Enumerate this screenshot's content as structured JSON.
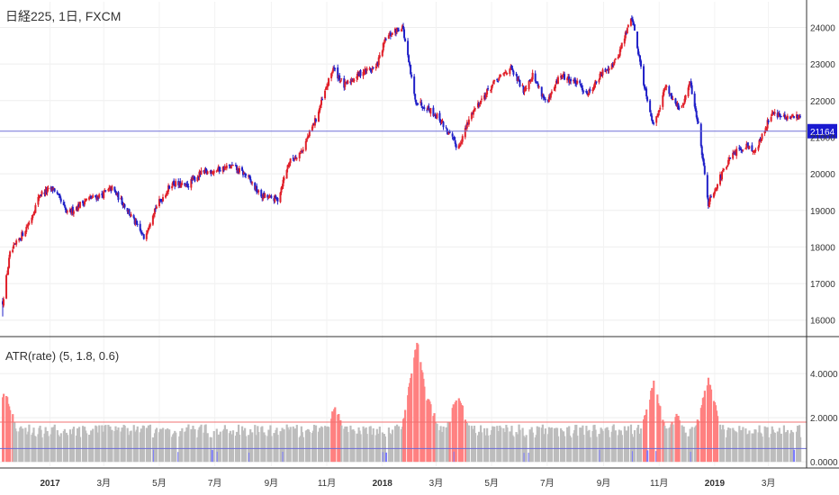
{
  "colors": {
    "up": "#e0202a",
    "down": "#2020c8",
    "ref_line": "#7070d8",
    "hist_normal": "#bdbdbd",
    "hist_high": "#ff8080",
    "hist_low": "#7b7bff",
    "upper_line": "#f07070",
    "lower_line": "#6a6ad8",
    "price_badge": "#1a1ad0"
  },
  "chart_data": [
    {
      "type": "candlestick",
      "title": "日経225, 1日, FXCM",
      "ylim": [
        15600,
        24700
      ],
      "y_ticks": [
        16000,
        17000,
        18000,
        19000,
        20000,
        21000,
        22000,
        23000,
        24000
      ],
      "y_tick_labels": [
        "16000",
        "17000",
        "18000",
        "19000",
        "20000",
        "21000",
        "22000",
        "23000",
        "24000"
      ],
      "current_price": 21164,
      "current_price_label": "21164",
      "x_date_range": [
        "2016-11-10",
        "2019-04-05"
      ],
      "path_anchors": [
        [
          "2016-11-10",
          16500
        ],
        [
          "2016-11-18",
          17800
        ],
        [
          "2016-12-10",
          18700
        ],
        [
          "2016-12-21",
          19450
        ],
        [
          "2017-01-05",
          19600
        ],
        [
          "2017-01-20",
          18900
        ],
        [
          "2017-02-10",
          19300
        ],
        [
          "2017-02-25",
          19400
        ],
        [
          "2017-03-10",
          19600
        ],
        [
          "2017-03-25",
          19100
        ],
        [
          "2017-04-14",
          18250
        ],
        [
          "2017-04-25",
          19000
        ],
        [
          "2017-05-15",
          19750
        ],
        [
          "2017-05-30",
          19650
        ],
        [
          "2017-06-15",
          20000
        ],
        [
          "2017-07-01",
          20100
        ],
        [
          "2017-07-20",
          20200
        ],
        [
          "2017-08-05",
          19950
        ],
        [
          "2017-08-20",
          19400
        ],
        [
          "2017-09-08",
          19300
        ],
        [
          "2017-09-20",
          20300
        ],
        [
          "2017-10-05",
          20650
        ],
        [
          "2017-10-20",
          21500
        ],
        [
          "2017-11-08",
          22900
        ],
        [
          "2017-11-20",
          22400
        ],
        [
          "2017-12-10",
          22800
        ],
        [
          "2017-12-25",
          22900
        ],
        [
          "2018-01-05",
          23700
        ],
        [
          "2018-01-23",
          24050
        ],
        [
          "2018-02-06",
          22000
        ],
        [
          "2018-02-20",
          21800
        ],
        [
          "2018-03-05",
          21500
        ],
        [
          "2018-03-25",
          20700
        ],
        [
          "2018-04-10",
          21700
        ],
        [
          "2018-05-01",
          22400
        ],
        [
          "2018-05-21",
          22900
        ],
        [
          "2018-06-05",
          22300
        ],
        [
          "2018-06-15",
          22700
        ],
        [
          "2018-07-01",
          21900
        ],
        [
          "2018-07-15",
          22700
        ],
        [
          "2018-08-01",
          22500
        ],
        [
          "2018-08-15",
          22200
        ],
        [
          "2018-09-01",
          22800
        ],
        [
          "2018-09-15",
          23100
        ],
        [
          "2018-10-02",
          24300
        ],
        [
          "2018-10-15",
          22500
        ],
        [
          "2018-10-26",
          21300
        ],
        [
          "2018-11-08",
          22400
        ],
        [
          "2018-11-25",
          21700
        ],
        [
          "2018-12-05",
          22500
        ],
        [
          "2018-12-15",
          21200
        ],
        [
          "2018-12-25",
          19200
        ],
        [
          "2019-01-05",
          19800
        ],
        [
          "2019-01-20",
          20500
        ],
        [
          "2019-02-05",
          20800
        ],
        [
          "2019-02-15",
          20600
        ],
        [
          "2019-03-05",
          21700
        ],
        [
          "2019-03-20",
          21500
        ],
        [
          "2019-04-05",
          21600
        ]
      ]
    },
    {
      "type": "histogram",
      "title": "ATR(rate) (5, 1.8, 0.6)",
      "ylim": [
        -0.2,
        5.6
      ],
      "y_ticks": [
        0,
        2,
        4
      ],
      "y_tick_labels": [
        "0.0000",
        "2.0000",
        "4.0000"
      ],
      "upper_line": 1.8,
      "lower_line": 0.6,
      "peaks": [
        [
          "2016-11-12",
          3.2
        ],
        [
          "2018-02-08",
          5.3
        ],
        [
          "2018-02-20",
          2.8
        ],
        [
          "2018-03-25",
          3.0
        ],
        [
          "2018-10-26",
          3.4
        ],
        [
          "2018-12-25",
          3.6
        ],
        [
          "2017-11-10",
          2.3
        ],
        [
          "2018-11-20",
          2.0
        ]
      ]
    }
  ],
  "x_axis": {
    "ticks": [
      {
        "date": "2017-01-01",
        "label": "2017",
        "bold": true
      },
      {
        "date": "2017-03-01",
        "label": "3月",
        "bold": false
      },
      {
        "date": "2017-05-01",
        "label": "5月",
        "bold": false
      },
      {
        "date": "2017-07-01",
        "label": "7月",
        "bold": false
      },
      {
        "date": "2017-09-01",
        "label": "9月",
        "bold": false
      },
      {
        "date": "2017-11-01",
        "label": "11月",
        "bold": false
      },
      {
        "date": "2018-01-01",
        "label": "2018",
        "bold": true
      },
      {
        "date": "2018-03-01",
        "label": "3月",
        "bold": false
      },
      {
        "date": "2018-05-01",
        "label": "5月",
        "bold": false
      },
      {
        "date": "2018-07-01",
        "label": "7月",
        "bold": false
      },
      {
        "date": "2018-09-01",
        "label": "9月",
        "bold": false
      },
      {
        "date": "2018-11-01",
        "label": "11月",
        "bold": false
      },
      {
        "date": "2019-01-01",
        "label": "2019",
        "bold": true
      },
      {
        "date": "2019-03-01",
        "label": "3月",
        "bold": false
      }
    ]
  }
}
